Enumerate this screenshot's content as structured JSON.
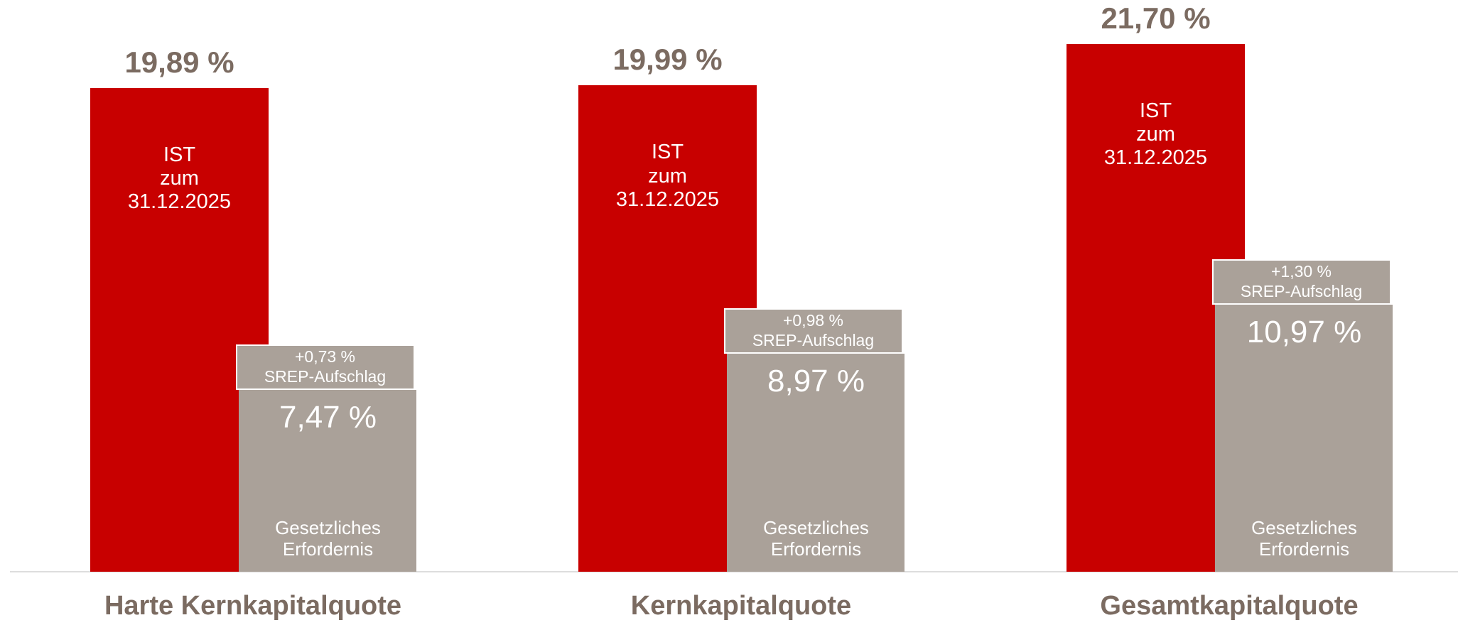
{
  "chart_data": {
    "type": "bar",
    "categories": [
      "Harte Kernkapitalquote",
      "Kernkapitalquote",
      "Gesamtkapitalquote"
    ],
    "ylim": [
      0,
      23.5
    ],
    "series": [
      {
        "name": "IST zum 31.12.2025",
        "color": "#c80000",
        "values": [
          19.89,
          19.99,
          21.7
        ],
        "value_labels": [
          "19,89 %",
          "19,99 %",
          "21,70 %"
        ]
      },
      {
        "name": "Gesetzliches Erfordernis",
        "color": "#aaa199",
        "values": [
          7.47,
          8.97,
          10.97
        ],
        "value_labels": [
          "7,47 %",
          "8,97 %",
          "10,97 %"
        ]
      },
      {
        "name": "SREP-Aufschlag",
        "color": "#aaa199",
        "values": [
          0.73,
          0.98,
          1.3
        ],
        "value_labels": [
          "+0,73 %",
          "+0,98 %",
          "+1,30 %"
        ]
      }
    ]
  }
}
